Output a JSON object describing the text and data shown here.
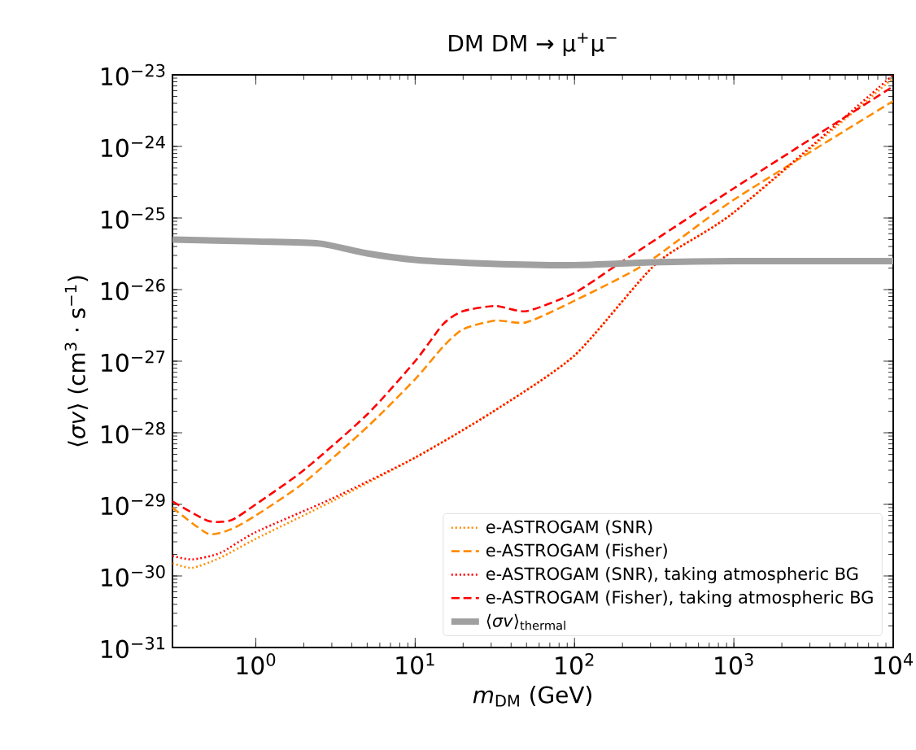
{
  "chart_data": {
    "type": "line",
    "title": "DM DM → μ$^{+}$μ$^{−}$",
    "xlabel": "*m*$_{DM}$ (GeV)",
    "ylabel": "⟨*σv*⟩ (cm$^{3}$ · s$^{−1}$)",
    "log": "xy",
    "xlim": [
      0.3,
      10000
    ],
    "ylim": [
      1e-31,
      1e-23
    ],
    "xticks": [
      {
        "value": 1,
        "label": "10$^{0}$"
      },
      {
        "value": 10,
        "label": "10$^{1}$"
      },
      {
        "value": 100,
        "label": "10$^{2}$"
      },
      {
        "value": 1000,
        "label": "10$^{3}$"
      },
      {
        "value": 10000,
        "label": "10$^{4}$"
      }
    ],
    "yticks": [
      {
        "value": 1e-31,
        "label": "10$^{−31}$"
      },
      {
        "value": 1e-30,
        "label": "10$^{−30}$"
      },
      {
        "value": 1e-29,
        "label": "10$^{−29}$"
      },
      {
        "value": 1e-28,
        "label": "10$^{−28}$"
      },
      {
        "value": 1e-27,
        "label": "10$^{−27}$"
      },
      {
        "value": 1e-26,
        "label": "10$^{−26}$"
      },
      {
        "value": 1e-25,
        "label": "10$^{−25}$"
      },
      {
        "value": 1e-24,
        "label": "10$^{−24}$"
      },
      {
        "value": 1e-23,
        "label": "10$^{−23}$"
      }
    ],
    "legend": "bottom right",
    "series": [
      {
        "name": "e-ASTROGAM (SNR)",
        "color": "#ff8c00",
        "line_style": "dotted",
        "x": [
          0.3,
          0.4,
          0.6,
          1,
          3,
          10,
          30,
          100,
          325,
          1000,
          10000
        ],
        "values": [
          1.5e-30,
          1.3e-30,
          1.8e-30,
          3.3e-30,
          1.1e-29,
          4.5e-29,
          1.9e-28,
          1.2e-27,
          2.3e-26,
          1.2e-25,
          9e-24
        ]
      },
      {
        "name": "e-ASTROGAM (Fisher)",
        "color": "#ff8c00",
        "line_style": "dashed",
        "x": [
          0.3,
          0.5,
          0.7,
          1,
          2,
          5,
          10,
          15,
          20,
          32,
          50,
          100,
          280,
          1000,
          10000
        ],
        "values": [
          9e-30,
          3.9e-30,
          4.5e-30,
          7e-30,
          2e-29,
          1.2e-28,
          5.6e-28,
          1.6e-27,
          2.8e-27,
          3.7e-27,
          3.5e-27,
          7e-27,
          2.3e-26,
          1.8e-25,
          4.3e-24
        ]
      },
      {
        "name": "e-ASTROGAM (SNR), taking atmospheric BG",
        "color": "#ff0000",
        "line_style": "dotted",
        "x": [
          0.3,
          0.4,
          0.6,
          1,
          3,
          10,
          30,
          100,
          325,
          1000,
          10000
        ],
        "values": [
          1.9e-30,
          1.7e-30,
          2.1e-30,
          4.1e-30,
          1.2e-29,
          4.5e-29,
          1.9e-28,
          1.2e-27,
          2.3e-26,
          1.2e-25,
          1e-23
        ]
      },
      {
        "name": "e-ASTROGAM (Fisher), taking atmospheric BG",
        "color": "#ff0000",
        "line_style": "dashed",
        "x": [
          0.3,
          0.5,
          0.7,
          1,
          2,
          5,
          10,
          15,
          20,
          32,
          50,
          100,
          190,
          1000,
          10000
        ],
        "values": [
          1.1e-29,
          5.9e-30,
          6e-30,
          1e-29,
          3e-29,
          1.8e-28,
          1e-27,
          3.3e-27,
          5e-27,
          5.9e-27,
          5e-27,
          9e-27,
          2.3e-26,
          2.6e-25,
          6.9e-24
        ]
      },
      {
        "name": "⟨*σv*⟩$_{thermal}$",
        "color": "#a0a0a0",
        "line_style": "solid",
        "x": [
          0.3,
          1,
          2.5,
          5,
          10,
          30,
          100,
          300,
          1000,
          10000
        ],
        "values": [
          5e-26,
          4.7e-26,
          4.4e-26,
          3.2e-26,
          2.6e-26,
          2.3e-26,
          2.2e-26,
          2.4e-26,
          2.5e-26,
          2.5e-26
        ]
      }
    ]
  }
}
